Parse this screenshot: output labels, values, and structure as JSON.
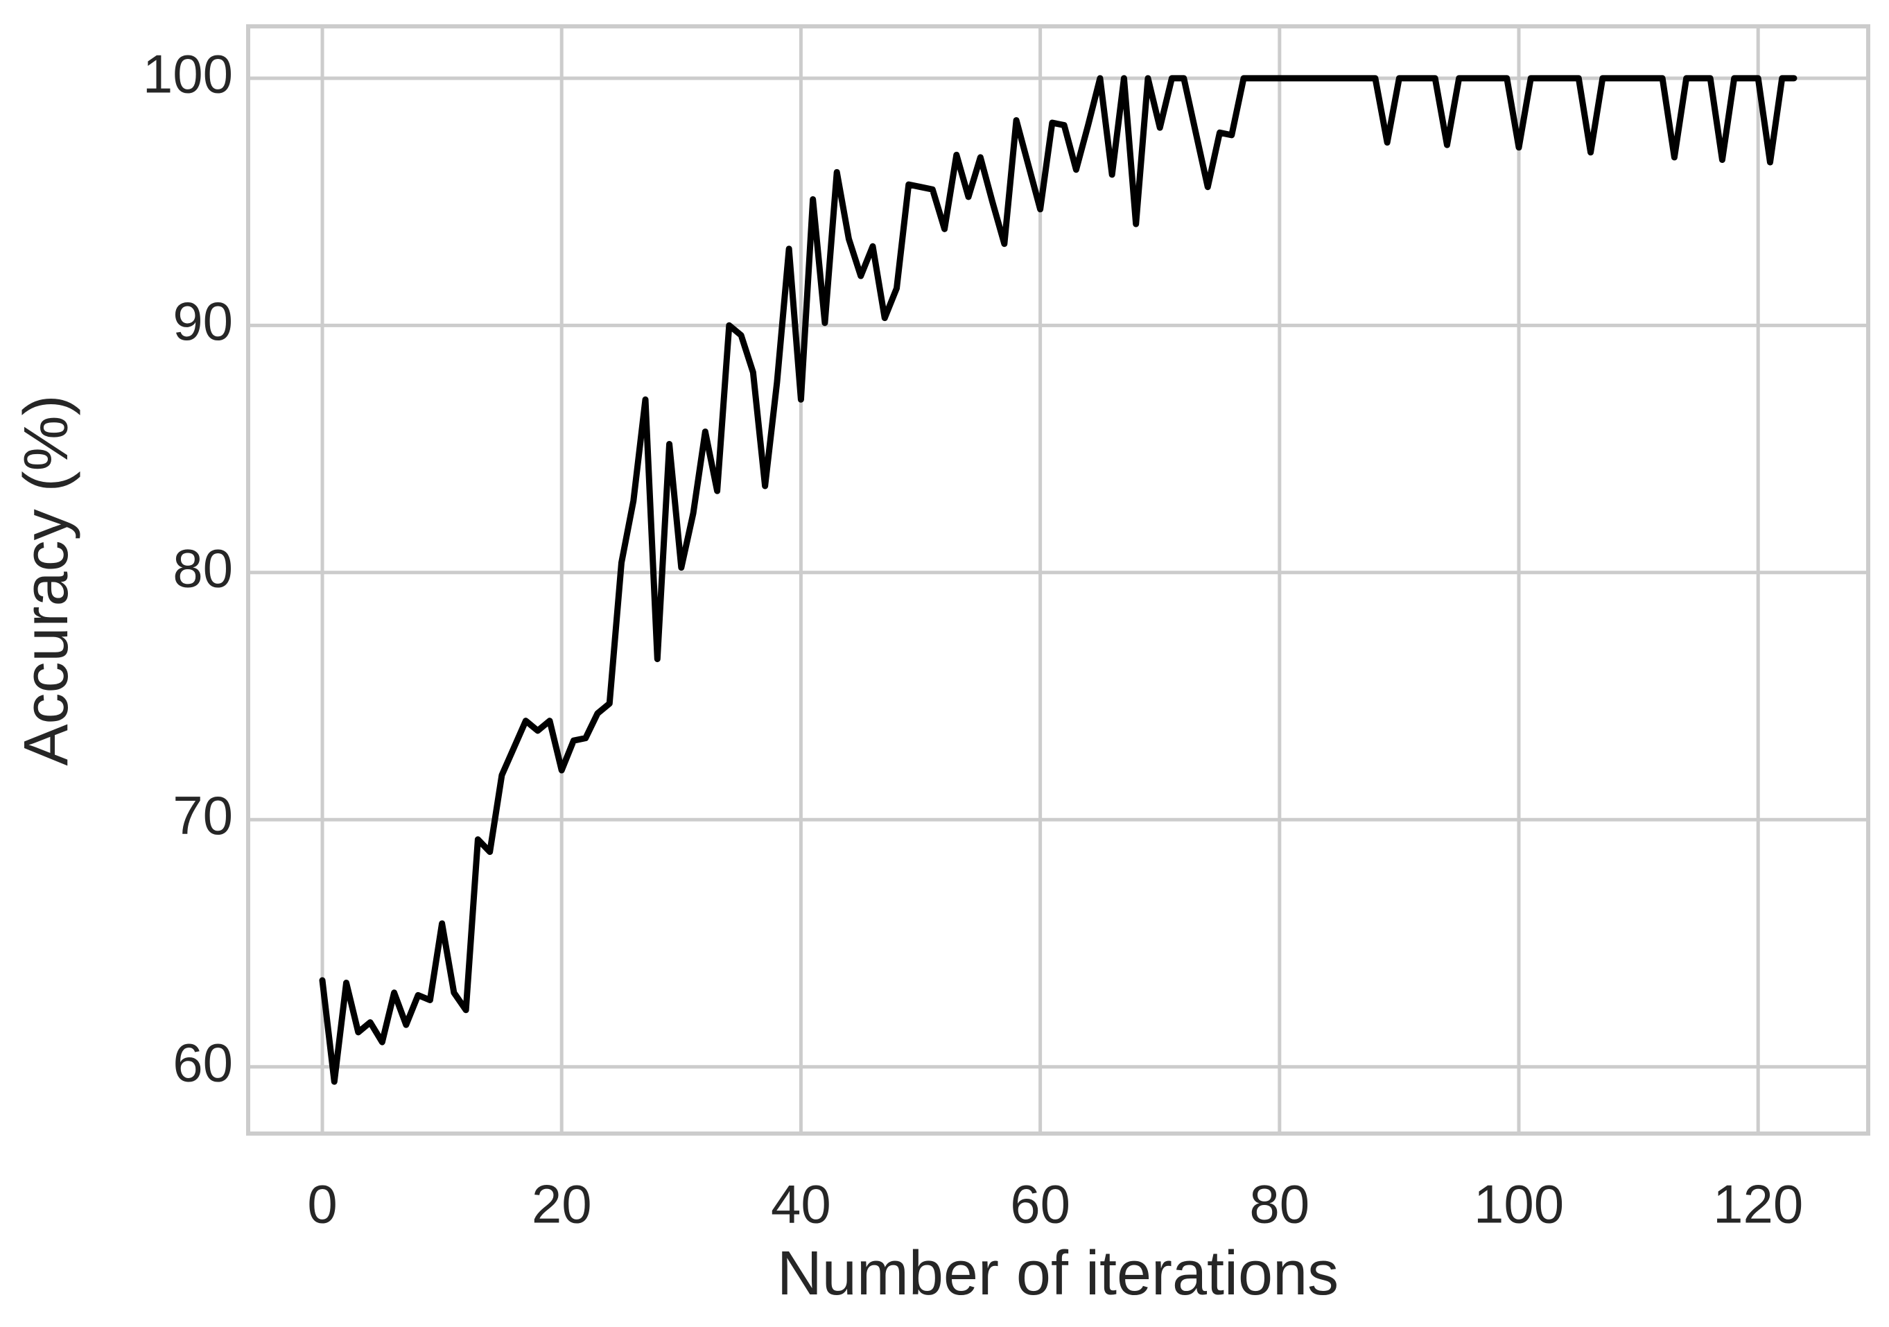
{
  "chart_data": {
    "type": "line",
    "xlabel": "Number of iterations",
    "ylabel": "Accuracy (%)",
    "x": [
      0,
      1,
      2,
      3,
      4,
      5,
      6,
      7,
      8,
      9,
      10,
      11,
      12,
      13,
      14,
      15,
      16,
      17,
      18,
      19,
      20,
      21,
      22,
      23,
      24,
      25,
      26,
      27,
      28,
      29,
      30,
      31,
      32,
      33,
      34,
      35,
      36,
      37,
      38,
      39,
      40,
      41,
      42,
      43,
      44,
      45,
      46,
      47,
      48,
      49,
      50,
      51,
      52,
      53,
      54,
      55,
      56,
      57,
      58,
      59,
      60,
      61,
      62,
      63,
      64,
      65,
      66,
      67,
      68,
      69,
      70,
      71,
      72,
      73,
      74,
      75,
      76,
      77,
      78,
      79,
      80,
      81,
      82,
      83,
      84,
      85,
      86,
      87,
      88,
      89,
      90,
      91,
      92,
      93,
      94,
      95,
      96,
      97,
      98,
      99,
      100,
      101,
      102,
      103,
      104,
      105,
      106,
      107,
      108,
      109,
      110,
      111,
      112,
      113,
      114,
      115,
      116,
      117,
      118,
      119,
      120,
      121,
      122,
      123
    ],
    "series": [
      {
        "color": "#000000",
        "values": [
          63.5,
          59.4,
          63.4,
          61.4,
          61.8,
          61.0,
          63.0,
          61.7,
          62.9,
          62.7,
          65.8,
          63.0,
          62.3,
          69.2,
          68.7,
          71.8,
          72.9,
          74.0,
          73.6,
          74.0,
          72.0,
          73.2,
          73.3,
          74.3,
          74.7,
          80.4,
          82.9,
          87.0,
          76.5,
          85.2,
          80.2,
          82.4,
          85.7,
          83.3,
          90.0,
          89.6,
          88.1,
          83.5,
          87.7,
          93.1,
          87.0,
          95.1,
          90.1,
          96.2,
          93.5,
          92.0,
          93.2,
          90.3,
          91.5,
          95.7,
          95.6,
          95.5,
          93.9,
          96.9,
          95.2,
          96.8,
          95.0,
          93.3,
          98.3,
          96.5,
          94.7,
          98.2,
          98.1,
          96.3,
          98.1,
          100,
          96.1,
          100,
          94.1,
          100,
          98.0,
          100,
          100,
          97.8,
          95.6,
          97.8,
          97.7,
          100,
          100,
          100,
          100,
          100,
          100,
          100,
          100,
          100,
          100,
          100,
          100,
          97.4,
          100,
          100,
          100,
          100,
          97.3,
          100,
          100,
          100,
          100,
          100,
          97.2,
          100,
          100,
          100,
          100,
          100,
          97.0,
          100,
          100,
          100,
          100,
          100,
          100,
          96.8,
          100,
          100,
          100,
          96.7,
          100,
          100,
          100,
          96.6,
          100,
          100
        ]
      }
    ],
    "xlim": [
      -6.2,
      129.2
    ],
    "ylim": [
      57.3,
      102.1
    ],
    "xticks": [
      0,
      20,
      40,
      60,
      80,
      100,
      120
    ],
    "yticks": [
      60,
      70,
      80,
      90,
      100
    ],
    "grid": true
  }
}
